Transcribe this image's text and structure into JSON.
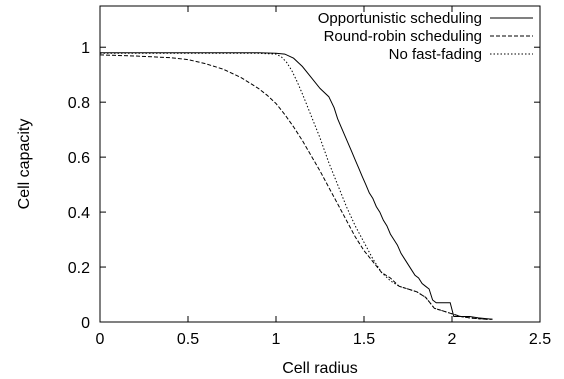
{
  "chart_data": {
    "type": "line",
    "xlabel": "Cell radius",
    "ylabel": "Cell capacity",
    "xlim": [
      0,
      2.5
    ],
    "ylim": [
      0,
      1.15
    ],
    "x_ticks": [
      "0",
      "0.5",
      "1",
      "1.5",
      "2",
      "2.5"
    ],
    "y_ticks": [
      "0",
      "0.2",
      "0.4",
      "0.6",
      "0.8",
      "1"
    ],
    "x_tick_values": [
      0,
      0.5,
      1,
      1.5,
      2,
      2.5
    ],
    "y_tick_values": [
      0,
      0.2,
      0.4,
      0.6,
      0.8,
      1
    ],
    "grid": false,
    "legend_position": "top-right",
    "series": [
      {
        "name": "Opportunistic scheduling",
        "dash": "solid",
        "x": [
          0,
          0.5,
          0.9,
          1.0,
          1.05,
          1.1,
          1.15,
          1.2,
          1.25,
          1.3,
          1.33,
          1.35,
          1.37,
          1.39,
          1.41,
          1.43,
          1.45,
          1.47,
          1.49,
          1.51,
          1.53,
          1.55,
          1.57,
          1.59,
          1.61,
          1.63,
          1.65,
          1.67,
          1.69,
          1.71,
          1.73,
          1.75,
          1.77,
          1.79,
          1.81,
          1.83,
          1.85,
          1.87,
          1.89,
          1.91,
          1.95,
          1.99,
          2.01,
          2.05,
          2.1,
          2.15,
          2.2,
          2.23
        ],
        "y": [
          0.98,
          0.98,
          0.98,
          0.978,
          0.975,
          0.96,
          0.93,
          0.89,
          0.85,
          0.82,
          0.78,
          0.74,
          0.71,
          0.68,
          0.65,
          0.62,
          0.59,
          0.56,
          0.53,
          0.5,
          0.47,
          0.45,
          0.42,
          0.4,
          0.37,
          0.35,
          0.32,
          0.3,
          0.28,
          0.25,
          0.23,
          0.21,
          0.19,
          0.17,
          0.16,
          0.14,
          0.13,
          0.12,
          0.08,
          0.07,
          0.07,
          0.07,
          0.02,
          0.02,
          0.02,
          0.015,
          0.012,
          0.01
        ]
      },
      {
        "name": "Round-robin scheduling",
        "dash": "dashed",
        "x": [
          0,
          0.2,
          0.4,
          0.5,
          0.6,
          0.7,
          0.8,
          0.9,
          0.95,
          1.0,
          1.05,
          1.1,
          1.15,
          1.2,
          1.25,
          1.3,
          1.35,
          1.4,
          1.45,
          1.5,
          1.55,
          1.6,
          1.65,
          1.7,
          1.75,
          1.8,
          1.85,
          1.9,
          1.95,
          2.0,
          2.05,
          2.1,
          2.15,
          2.2,
          2.23
        ],
        "y": [
          0.972,
          0.968,
          0.962,
          0.955,
          0.94,
          0.92,
          0.89,
          0.85,
          0.825,
          0.795,
          0.755,
          0.71,
          0.66,
          0.605,
          0.55,
          0.49,
          0.43,
          0.37,
          0.31,
          0.26,
          0.22,
          0.18,
          0.16,
          0.13,
          0.12,
          0.11,
          0.09,
          0.05,
          0.04,
          0.03,
          0.02,
          0.015,
          0.012,
          0.01,
          0.01
        ]
      },
      {
        "name": "No fast-fading",
        "dash": "dotted",
        "x": [
          0,
          0.5,
          0.9,
          1.0,
          1.03,
          1.06,
          1.09,
          1.12,
          1.15,
          1.2,
          1.25,
          1.3,
          1.35,
          1.4,
          1.45,
          1.5,
          1.55,
          1.6,
          1.65,
          1.7,
          1.75,
          1.8,
          1.85,
          1.9,
          1.95,
          2.0,
          2.05,
          2.1,
          2.15,
          2.2,
          2.23
        ],
        "y": [
          0.978,
          0.978,
          0.978,
          0.975,
          0.965,
          0.945,
          0.915,
          0.875,
          0.83,
          0.75,
          0.67,
          0.58,
          0.5,
          0.42,
          0.35,
          0.29,
          0.23,
          0.18,
          0.15,
          0.13,
          0.12,
          0.11,
          0.09,
          0.05,
          0.04,
          0.03,
          0.02,
          0.015,
          0.012,
          0.01,
          0.01
        ]
      }
    ]
  }
}
